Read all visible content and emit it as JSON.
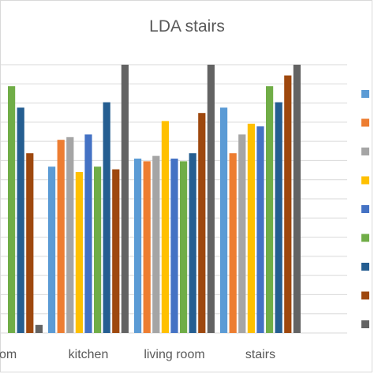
{
  "chart_data": {
    "type": "bar",
    "title": "LDA stairs",
    "categories": [
      "room",
      "kitchen",
      "living room",
      "stairs"
    ],
    "ylim": [
      0,
      100
    ],
    "grid": true,
    "legend": "right",
    "series": [
      {
        "color": "#5b9bd5",
        "values": [
          null,
          62,
          65,
          84
        ]
      },
      {
        "color": "#ed7d31",
        "values": [
          null,
          72,
          64,
          67
        ]
      },
      {
        "color": "#a5a5a5",
        "values": [
          null,
          73,
          66,
          74
        ]
      },
      {
        "color": "#ffc000",
        "values": [
          null,
          60,
          79,
          78
        ]
      },
      {
        "color": "#4472c4",
        "values": [
          null,
          74,
          65,
          77
        ]
      },
      {
        "color": "#70ad47",
        "values": [
          92,
          62,
          64,
          92
        ]
      },
      {
        "color": "#255e91",
        "values": [
          84,
          86,
          67,
          86
        ]
      },
      {
        "color": "#9e480e",
        "values": [
          67,
          61,
          82,
          96
        ]
      },
      {
        "color": "#636363",
        "values": [
          3,
          100,
          100,
          100
        ]
      }
    ]
  }
}
